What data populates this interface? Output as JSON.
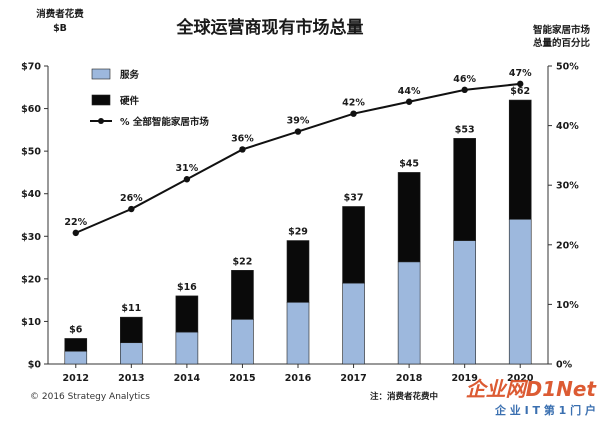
{
  "chart_data": {
    "type": "bar",
    "title": "全球运营商现有市场总量",
    "left_axis_label": [
      "消费者花费",
      "$B"
    ],
    "right_axis_label": [
      "智能家居市场",
      "总量的百分比"
    ],
    "categories": [
      "2012",
      "2013",
      "2014",
      "2015",
      "2016",
      "2017",
      "2018",
      "2019",
      "2020"
    ],
    "series": [
      {
        "name": "服务",
        "type": "stacked-bar",
        "values": [
          3,
          5,
          7.5,
          10.5,
          14.5,
          19,
          24,
          29,
          34
        ],
        "color": "#9db8dd"
      },
      {
        "name": "硬件",
        "type": "stacked-bar",
        "values": [
          3,
          6,
          8.5,
          11.5,
          14.5,
          18,
          21,
          24,
          28
        ],
        "color": "#0a0a0a"
      },
      {
        "name": "% 全部智能家居市场",
        "type": "line",
        "axis": "right",
        "values": [
          22,
          26,
          31,
          36,
          39,
          42,
          44,
          46,
          47
        ],
        "color": "#111111"
      }
    ],
    "bar_total_labels": [
      "$6",
      "$11",
      "$16",
      "$22",
      "$29",
      "$37",
      "$45",
      "$53",
      "$62"
    ],
    "line_labels": [
      "22%",
      "26%",
      "31%",
      "36%",
      "39%",
      "42%",
      "44%",
      "46%",
      "47%"
    ],
    "ylim_left": [
      0,
      70
    ],
    "ylim_right": [
      0,
      50
    ],
    "y_ticks_left": [
      "$0",
      "$10",
      "$20",
      "$30",
      "$40",
      "$50",
      "$60",
      "$70"
    ],
    "y_ticks_right": [
      "0%",
      "10%",
      "20%",
      "30%",
      "40%",
      "50%"
    ],
    "grid": false,
    "legend_position": "top-left"
  },
  "footer": {
    "source": "© 2016 Strategy Analytics",
    "note": "注：消费者花费中"
  },
  "watermark": {
    "brand": "企业网D1Net",
    "tagline": "企 业 I T 第 1 门 户"
  }
}
